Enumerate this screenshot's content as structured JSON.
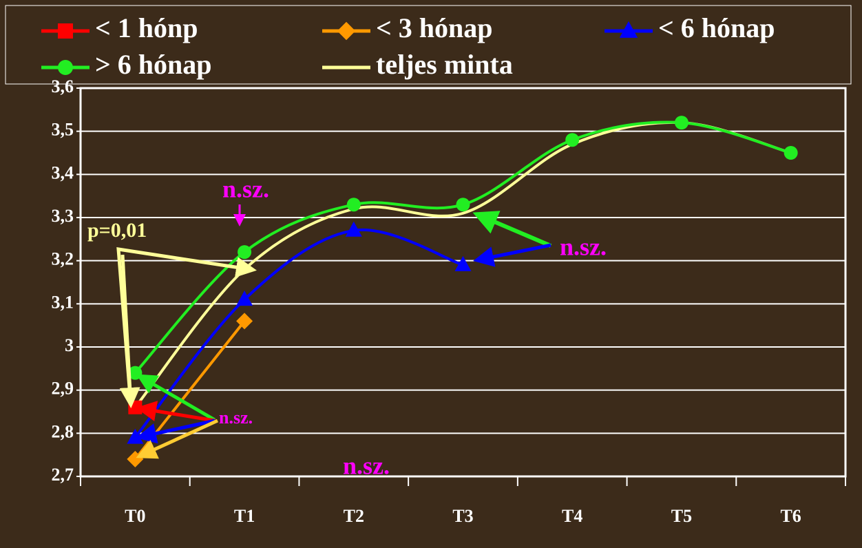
{
  "chart_data": {
    "type": "line",
    "categories": [
      "T0",
      "T1",
      "T2",
      "T3",
      "T4",
      "T5",
      "T6"
    ],
    "series": [
      {
        "name": "< 1 hónp",
        "color": "#ff0000",
        "marker": "square",
        "values": [
          2.86,
          null,
          null,
          null,
          null,
          null,
          null
        ]
      },
      {
        "name": "< 3 hónap",
        "color": "#ff9900",
        "marker": "diamond",
        "values": [
          2.74,
          3.06,
          null,
          null,
          null,
          null,
          null
        ]
      },
      {
        "name": "< 6 hónap",
        "color": "#0000ff",
        "marker": "triangle",
        "values": [
          2.79,
          3.11,
          3.27,
          3.19,
          null,
          null,
          null
        ]
      },
      {
        "name": "> 6 hónap",
        "color": "#22ee22",
        "marker": "circle",
        "values": [
          2.94,
          3.22,
          3.33,
          3.33,
          3.48,
          3.52,
          3.45
        ]
      },
      {
        "name": "teljes minta",
        "color": "#ffff99",
        "marker": "none",
        "values": [
          2.86,
          3.18,
          3.32,
          3.31,
          3.47,
          3.52,
          3.45
        ]
      }
    ],
    "ylim": [
      2.7,
      3.6
    ],
    "yticks": [
      {
        "value": 2.7,
        "label": "2,7"
      },
      {
        "value": 2.8,
        "label": "2,8"
      },
      {
        "value": 2.9,
        "label": "2,9"
      },
      3,
      {
        "value": 3.1,
        "label": "3,1"
      },
      {
        "value": 3.2,
        "label": "3,2"
      },
      {
        "value": 3.3,
        "label": "3,3"
      },
      {
        "value": 3.4,
        "label": "3,4"
      },
      {
        "value": 3.5,
        "label": "3,5"
      },
      {
        "value": 3.6,
        "label": "3,6"
      }
    ],
    "grid": true,
    "annotations": [
      "p=0,01",
      "n.sz.",
      "n.sz.",
      "n.sz.",
      "n.sz."
    ]
  }
}
